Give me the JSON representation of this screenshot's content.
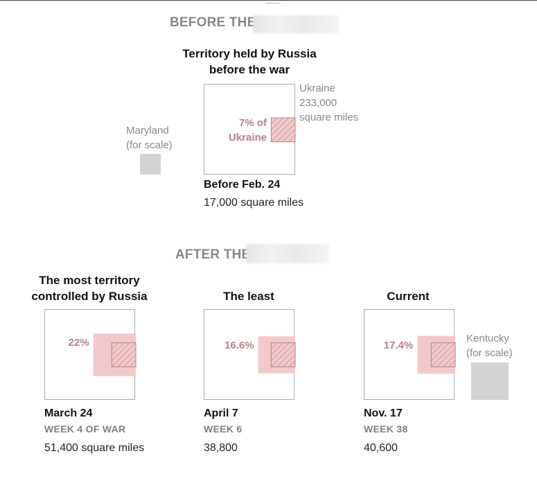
{
  "sections": {
    "before_heading": "BEFORE THE",
    "after_heading": "AFTER THE"
  },
  "before": {
    "title_line1": "Territory held by Russia",
    "title_line2": "before the war",
    "box_label_line1": "7% of",
    "box_label_line2": "Ukraine",
    "date": "Before Feb. 24",
    "area": "17,000 square miles",
    "ukraine_label_line1": "Ukraine",
    "ukraine_label_line2": "233,000",
    "ukraine_label_line3": "square miles",
    "scale_label_line1": "Maryland",
    "scale_label_line2": "(for scale)"
  },
  "after": {
    "panels": [
      {
        "title_line1": "The most territory",
        "title_line2": "controlled by Russia",
        "pct": "22%",
        "date": "March 24",
        "week": "WEEK 4 OF WAR",
        "area": "51,400 square miles"
      },
      {
        "title_line1": "The least",
        "title_line2": "",
        "pct": "16.6%",
        "date": "April 7",
        "week": "WEEK 6",
        "area": "38,800"
      },
      {
        "title_line1": "Current",
        "title_line2": "",
        "pct": "17.4%",
        "date": "Nov. 17",
        "week": "WEEK 38",
        "area": "40,600"
      }
    ],
    "scale_label_line1": "Kentucky",
    "scale_label_line2": "(for scale)"
  },
  "colors": {
    "held_fill": "#f2c9cb",
    "hatch_stroke": "#b98081",
    "box_border": "#aaaaaa",
    "scale_square": "#d3d3d3",
    "label_gray": "#888888"
  },
  "chart_data": {
    "type": "area-comparison",
    "ukraine_total_sq_mi": 233000,
    "series": [
      {
        "name": "Before Feb. 24",
        "sq_mi": 17000,
        "pct_of_ukraine": 7
      },
      {
        "name": "March 24",
        "sq_mi": 51400,
        "pct_of_ukraine": 22
      },
      {
        "name": "April 7",
        "sq_mi": 38800,
        "pct_of_ukraine": 16.6
      },
      {
        "name": "Nov. 17",
        "sq_mi": 40600,
        "pct_of_ukraine": 17.4
      }
    ]
  }
}
